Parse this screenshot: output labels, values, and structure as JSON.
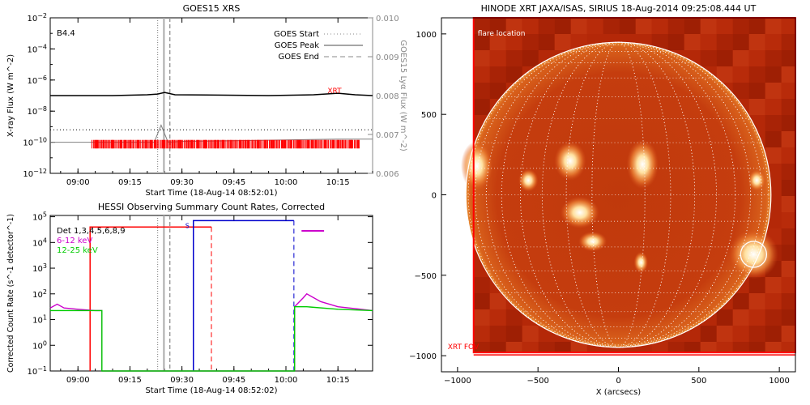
{
  "chart_data": [
    {
      "type": "line",
      "title": "GOES15 XRS",
      "xlabel": "Start Time (18-Aug-14 08:52:01)",
      "ylabel": "X-ray Flux (W m^-2)",
      "ylabel_right": "GOES15 Lyα Flux (W m^-2)",
      "class_label": "B4.4",
      "x_ticks": [
        "09:00",
        "09:15",
        "09:30",
        "09:45",
        "10:00",
        "10:15"
      ],
      "x_minutes": [
        0,
        15,
        30,
        45,
        60,
        75
      ],
      "xlim_minutes": [
        -8,
        85
      ],
      "y_ticks_exp": [
        -12,
        -10,
        -8,
        -6,
        -4,
        -2
      ],
      "ylim_log": [
        -12,
        -2
      ],
      "y2_ticks": [
        "0.006",
        "0.007",
        "0.008",
        "0.009",
        "0.010"
      ],
      "ylim2": [
        0.006,
        0.01
      ],
      "legend": [
        {
          "label": "GOES Start",
          "style": "dotted"
        },
        {
          "label": "GOES Peak",
          "style": "solid"
        },
        {
          "label": "GOES End",
          "style": "dashed"
        }
      ],
      "event_lines_minutes": {
        "start": 23,
        "peak": 24.8,
        "end": 26.5
      },
      "xrt_label": "XRT",
      "series": [
        {
          "name": "",
          "color": "#000000",
          "x": [
            -8,
            10,
            20,
            23,
            25,
            28,
            40,
            55,
            68,
            75,
            80,
            85
          ],
          "y_log": [
            -7.0,
            -7.0,
            -6.95,
            -6.9,
            -6.8,
            -6.95,
            -6.97,
            -7.0,
            -6.95,
            -6.85,
            -6.95,
            -7.0
          ]
        },
        {
          "name": "",
          "color": "#808080",
          "x": [
            -8,
            10,
            22,
            24,
            26,
            30,
            45,
            60,
            75,
            85
          ],
          "y_log": [
            -10.0,
            -10.0,
            -10.0,
            -8.9,
            -10.0,
            -9.95,
            -9.9,
            -9.85,
            -9.8,
            -9.8
          ]
        },
        {
          "name": "",
          "color": "#000000",
          "style": "dotted",
          "x": [
            -8,
            85
          ],
          "y_log": [
            -9.2,
            -9.2
          ]
        }
      ],
      "xrt_obs": {
        "color": "#ff0000",
        "start_min": 4,
        "end_min": 81
      }
    },
    {
      "type": "line",
      "title": "HESSI Observing Summary Count Rates, Corrected",
      "xlabel": "Start Time (18-Aug-14 08:52:02)",
      "ylabel": "Corrected Count Rate (s^-1 detector^-1)",
      "x_ticks": [
        "09:00",
        "09:15",
        "09:30",
        "09:45",
        "10:00",
        "10:15"
      ],
      "x_minutes": [
        0,
        15,
        30,
        45,
        60,
        75
      ],
      "xlim_minutes": [
        -8,
        85
      ],
      "y_ticks_exp": [
        -1,
        0,
        1,
        2,
        3,
        4,
        5
      ],
      "ylim_log": [
        -1,
        5.05
      ],
      "legend": [
        {
          "label": "Det 1,3,4,5,6,8,9",
          "color": "#000000"
        },
        {
          "label": "6-12 keV",
          "color": "#cc00cc"
        },
        {
          "label": "12-25 keV",
          "color": "#00cc00"
        }
      ],
      "event_lines_minutes": {
        "start": 23,
        "peak": 24.8,
        "end": 26.5
      },
      "markers": {
        "night_red": {
          "start": 3.5,
          "end": 38.5,
          "level_log": 4.6,
          "color": "#ff0000"
        },
        "saa_blue": {
          "start": 33.3,
          "end": 62.3,
          "level_log": 4.85,
          "color": "#0000cc",
          "label": "S"
        },
        "flare_magenta": {
          "start": 64.5,
          "end": 71,
          "level_log": 4.45,
          "color": "#cc00cc"
        }
      },
      "series": [
        {
          "name": "6-12 keV",
          "color": "#cc00cc",
          "x": [
            -8,
            -6,
            -4,
            0,
            5,
            6.9,
            6.9,
            62.5,
            62.5,
            65,
            66,
            70,
            75,
            85
          ],
          "y_log": [
            1.45,
            1.6,
            1.45,
            1.4,
            1.35,
            1.35,
            -1,
            -1,
            1.5,
            1.85,
            2.0,
            1.7,
            1.5,
            1.35
          ]
        },
        {
          "name": "12-25 keV",
          "color": "#00cc00",
          "x": [
            -8,
            0,
            6.9,
            6.9,
            62.5,
            62.5,
            66,
            75,
            85
          ],
          "y_log": [
            1.35,
            1.35,
            1.35,
            -1,
            -1,
            1.5,
            1.5,
            1.4,
            1.35
          ]
        }
      ]
    },
    {
      "type": "image",
      "title": "HINODE XRT JAXA/ISAS, SIRIUS 18-Aug-2014 09:25:08.444 UT",
      "xlabel": "X (arcsecs)",
      "ylabel": "",
      "x_ticks": [
        -1000,
        -500,
        0,
        500,
        1000
      ],
      "y_ticks": [
        -1000,
        -500,
        0,
        500,
        1000
      ],
      "xlim": [
        -1100,
        1100
      ],
      "ylim": [
        -1100,
        1100
      ],
      "solar_radius_arcsec": 948,
      "flare_location_label": "flare location",
      "flare_location_arcsec": [
        840,
        -370
      ],
      "fov_label": "XRT FOV",
      "fov_arcsec": {
        "x0": -900,
        "x1": 1100,
        "y0": -980,
        "y1": 1100
      },
      "grid_spacing_deg": 10
    }
  ]
}
